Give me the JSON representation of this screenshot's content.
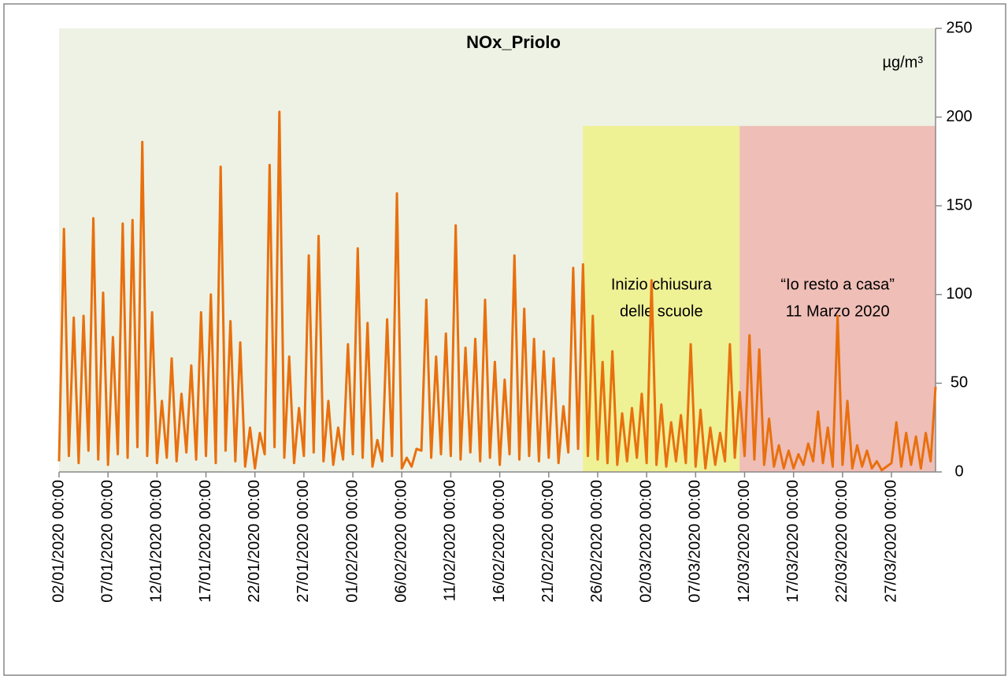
{
  "chart_data": {
    "type": "line",
    "title": "NOx_Priolo",
    "unit_label": "µg/m³",
    "categories": [
      "02/01/2020 00:00",
      null,
      null,
      null,
      null,
      null,
      null,
      null,
      null,
      null,
      "07/01/2020 00:00",
      null,
      null,
      null,
      null,
      null,
      null,
      null,
      null,
      null,
      "12/01/2020 00:00",
      null,
      null,
      null,
      null,
      null,
      null,
      null,
      null,
      null,
      "17/01/2020 00:00",
      null,
      null,
      null,
      null,
      null,
      null,
      null,
      null,
      null,
      "22/01/2020 00:00",
      null,
      null,
      null,
      null,
      null,
      null,
      null,
      null,
      null,
      "27/01/2020 00:00",
      null,
      null,
      null,
      null,
      null,
      null,
      null,
      null,
      null,
      "01/02/2020 00:00",
      null,
      null,
      null,
      null,
      null,
      null,
      null,
      null,
      null,
      "06/02/2020 00:00",
      null,
      null,
      null,
      null,
      null,
      null,
      null,
      null,
      null,
      "11/02/2020 00:00",
      null,
      null,
      null,
      null,
      null,
      null,
      null,
      null,
      null,
      "16/02/2020 00:00",
      null,
      null,
      null,
      null,
      null,
      null,
      null,
      null,
      null,
      "21/02/2020 00:00",
      null,
      null,
      null,
      null,
      null,
      null,
      null,
      null,
      null,
      "26/02/2020 00:00",
      null,
      null,
      null,
      null,
      null,
      null,
      null,
      null,
      null,
      "02/03/2020 00:00",
      null,
      null,
      null,
      null,
      null,
      null,
      null,
      null,
      null,
      "07/03/2020 00:00",
      null,
      null,
      null,
      null,
      null,
      null,
      null,
      null,
      null,
      "12/03/2020 00:00",
      null,
      null,
      null,
      null,
      null,
      null,
      null,
      null,
      null,
      "17/03/2020 00:00",
      null,
      null,
      null,
      null,
      null,
      null,
      null,
      null,
      null,
      "22/03/2020 00:00",
      null,
      null,
      null,
      null,
      null,
      null,
      null,
      null,
      null,
      "27/03/2020 00:00",
      null,
      null,
      null,
      null,
      null,
      null,
      null,
      null,
      null
    ],
    "series": [
      {
        "name": "NOx_Priolo",
        "color": "#e8700e",
        "values": [
          6,
          137,
          9,
          87,
          5,
          88,
          12,
          143,
          7,
          101,
          4,
          76,
          10,
          140,
          8,
          142,
          14,
          186,
          9,
          90,
          5,
          40,
          8,
          64,
          6,
          44,
          11,
          60,
          7,
          90,
          9,
          100,
          5,
          172,
          12,
          85,
          6,
          73,
          3,
          25,
          2,
          22,
          10,
          173,
          14,
          203,
          8,
          65,
          5,
          36,
          9,
          122,
          11,
          133,
          6,
          40,
          4,
          25,
          7,
          72,
          10,
          126,
          8,
          84,
          3,
          18,
          6,
          86,
          9,
          157,
          2,
          8,
          3,
          13,
          12,
          97,
          8,
          65,
          10,
          78,
          9,
          139,
          7,
          70,
          11,
          75,
          6,
          97,
          8,
          62,
          4,
          52,
          10,
          122,
          7,
          92,
          9,
          75,
          6,
          68,
          8,
          64,
          5,
          37,
          11,
          115,
          13,
          117,
          9,
          88,
          7,
          62,
          5,
          68,
          4,
          33,
          6,
          36,
          8,
          44,
          5,
          108,
          4,
          38,
          3,
          28,
          6,
          32,
          5,
          72,
          3,
          35,
          2,
          25,
          4,
          22,
          6,
          72,
          8,
          45,
          9,
          77,
          7,
          69,
          4,
          30,
          3,
          15,
          2,
          12,
          2,
          10,
          4,
          16,
          6,
          34,
          5,
          25,
          3,
          88,
          4,
          40,
          2,
          15,
          3,
          12,
          2,
          6,
          1,
          3,
          5,
          28,
          3,
          22,
          4,
          20,
          2,
          22,
          6,
          48
        ]
      }
    ],
    "regions": [
      {
        "label": [
          "Inizio chiusura",
          "delle scuole"
        ],
        "color": "#f0f046",
        "from": 107,
        "to": 139,
        "value": 195
      },
      {
        "label": [
          "“Io resto a casa”",
          "11 Marzo 2020"
        ],
        "color": "#f08a8a",
        "from": 139,
        "to": 179,
        "value": 195
      }
    ],
    "ylim": [
      0,
      250
    ],
    "yticks": [
      0,
      50,
      100,
      150,
      200,
      250
    ],
    "y_axis_side": "right",
    "background": "#eef2e4"
  }
}
